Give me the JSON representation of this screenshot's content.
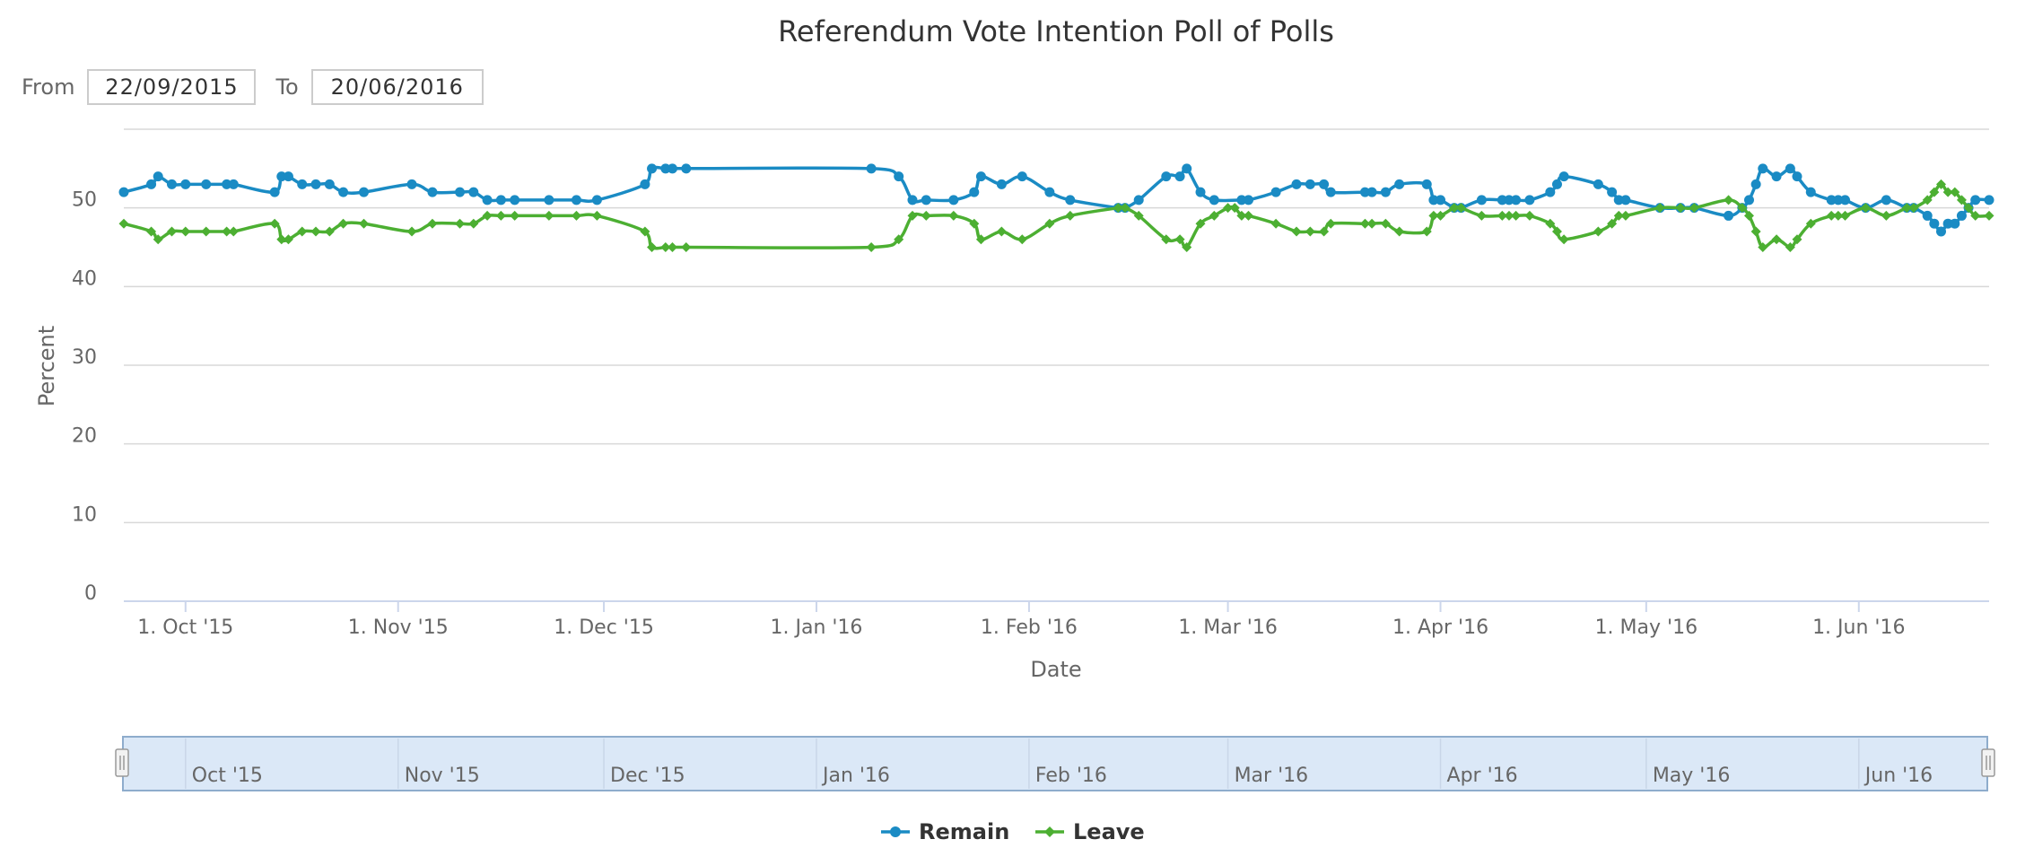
{
  "range_selector": {
    "from_label": "From",
    "from_value": "22/09/2015",
    "to_label": "To",
    "to_value": "20/06/2016"
  },
  "chart_data": {
    "type": "line",
    "title": "Referendum Vote Intention Poll of Polls",
    "xlabel": "Date",
    "ylabel": "Percent",
    "ylim": [
      0,
      60
    ],
    "yticks": [
      0,
      10,
      20,
      30,
      40,
      50
    ],
    "xlim": [
      "2015-09-22",
      "2016-06-20"
    ],
    "xticks": [
      {
        "date": "2015-10-01",
        "label": "1. Oct '15"
      },
      {
        "date": "2015-11-01",
        "label": "1. Nov '15"
      },
      {
        "date": "2015-12-01",
        "label": "1. Dec '15"
      },
      {
        "date": "2016-01-01",
        "label": "1. Jan '16"
      },
      {
        "date": "2016-02-01",
        "label": "1. Feb '16"
      },
      {
        "date": "2016-03-01",
        "label": "1. Mar '16"
      },
      {
        "date": "2016-04-01",
        "label": "1. Apr '16"
      },
      {
        "date": "2016-05-01",
        "label": "1. May '16"
      },
      {
        "date": "2016-06-01",
        "label": "1. Jun '16"
      }
    ],
    "navigator_labels": [
      {
        "date": "2015-10-01",
        "label": "Oct '15"
      },
      {
        "date": "2015-11-01",
        "label": "Nov '15"
      },
      {
        "date": "2015-12-01",
        "label": "Dec '15"
      },
      {
        "date": "2016-01-01",
        "label": "Jan '16"
      },
      {
        "date": "2016-02-01",
        "label": "Feb '16"
      },
      {
        "date": "2016-03-01",
        "label": "Mar '16"
      },
      {
        "date": "2016-04-01",
        "label": "Apr '16"
      },
      {
        "date": "2016-05-01",
        "label": "May '16"
      },
      {
        "date": "2016-06-01",
        "label": "Jun '16"
      }
    ],
    "grid": true,
    "legend_position": "bottom-center",
    "series": [
      {
        "name": "Remain",
        "color": "#1a8bc4",
        "marker": "circle",
        "points": [
          [
            "2015-09-22",
            52
          ],
          [
            "2015-09-26",
            53
          ],
          [
            "2015-09-27",
            54
          ],
          [
            "2015-09-29",
            53
          ],
          [
            "2015-10-01",
            53
          ],
          [
            "2015-10-04",
            53
          ],
          [
            "2015-10-07",
            53
          ],
          [
            "2015-10-08",
            53
          ],
          [
            "2015-10-14",
            52
          ],
          [
            "2015-10-15",
            54
          ],
          [
            "2015-10-16",
            54
          ],
          [
            "2015-10-18",
            53
          ],
          [
            "2015-10-20",
            53
          ],
          [
            "2015-10-22",
            53
          ],
          [
            "2015-10-24",
            52
          ],
          [
            "2015-10-27",
            52
          ],
          [
            "2015-11-03",
            53
          ],
          [
            "2015-11-06",
            52
          ],
          [
            "2015-11-10",
            52
          ],
          [
            "2015-11-12",
            52
          ],
          [
            "2015-11-14",
            51
          ],
          [
            "2015-11-16",
            51
          ],
          [
            "2015-11-18",
            51
          ],
          [
            "2015-11-23",
            51
          ],
          [
            "2015-11-27",
            51
          ],
          [
            "2015-11-30",
            51
          ],
          [
            "2015-12-07",
            53
          ],
          [
            "2015-12-08",
            55
          ],
          [
            "2015-12-10",
            55
          ],
          [
            "2015-12-11",
            55
          ],
          [
            "2015-12-13",
            55
          ],
          [
            "2016-01-09",
            55
          ],
          [
            "2016-01-13",
            54
          ],
          [
            "2016-01-15",
            51
          ],
          [
            "2016-01-17",
            51
          ],
          [
            "2016-01-21",
            51
          ],
          [
            "2016-01-24",
            52
          ],
          [
            "2016-01-25",
            54
          ],
          [
            "2016-01-28",
            53
          ],
          [
            "2016-01-31",
            54
          ],
          [
            "2016-02-04",
            52
          ],
          [
            "2016-02-07",
            51
          ],
          [
            "2016-02-14",
            50
          ],
          [
            "2016-02-15",
            50
          ],
          [
            "2016-02-17",
            51
          ],
          [
            "2016-02-21",
            54
          ],
          [
            "2016-02-23",
            54
          ],
          [
            "2016-02-24",
            55
          ],
          [
            "2016-02-26",
            52
          ],
          [
            "2016-02-28",
            51
          ],
          [
            "2016-03-03",
            51
          ],
          [
            "2016-03-04",
            51
          ],
          [
            "2016-03-08",
            52
          ],
          [
            "2016-03-11",
            53
          ],
          [
            "2016-03-13",
            53
          ],
          [
            "2016-03-15",
            53
          ],
          [
            "2016-03-16",
            52
          ],
          [
            "2016-03-21",
            52
          ],
          [
            "2016-03-22",
            52
          ],
          [
            "2016-03-24",
            52
          ],
          [
            "2016-03-26",
            53
          ],
          [
            "2016-03-30",
            53
          ],
          [
            "2016-03-31",
            51
          ],
          [
            "2016-04-01",
            51
          ],
          [
            "2016-04-03",
            50
          ],
          [
            "2016-04-04",
            50
          ],
          [
            "2016-04-07",
            51
          ],
          [
            "2016-04-10",
            51
          ],
          [
            "2016-04-11",
            51
          ],
          [
            "2016-04-12",
            51
          ],
          [
            "2016-04-14",
            51
          ],
          [
            "2016-04-17",
            52
          ],
          [
            "2016-04-18",
            53
          ],
          [
            "2016-04-19",
            54
          ],
          [
            "2016-04-24",
            53
          ],
          [
            "2016-04-26",
            52
          ],
          [
            "2016-04-27",
            51
          ],
          [
            "2016-04-28",
            51
          ],
          [
            "2016-05-03",
            50
          ],
          [
            "2016-05-06",
            50
          ],
          [
            "2016-05-08",
            50
          ],
          [
            "2016-05-13",
            49
          ],
          [
            "2016-05-15",
            50
          ],
          [
            "2016-05-16",
            51
          ],
          [
            "2016-05-17",
            53
          ],
          [
            "2016-05-18",
            55
          ],
          [
            "2016-05-20",
            54
          ],
          [
            "2016-05-22",
            55
          ],
          [
            "2016-05-23",
            54
          ],
          [
            "2016-05-25",
            52
          ],
          [
            "2016-05-28",
            51
          ],
          [
            "2016-05-29",
            51
          ],
          [
            "2016-05-30",
            51
          ],
          [
            "2016-06-02",
            50
          ],
          [
            "2016-06-05",
            51
          ],
          [
            "2016-06-08",
            50
          ],
          [
            "2016-06-09",
            50
          ],
          [
            "2016-06-11",
            49
          ],
          [
            "2016-06-12",
            48
          ],
          [
            "2016-06-13",
            47
          ],
          [
            "2016-06-14",
            48
          ],
          [
            "2016-06-15",
            48
          ],
          [
            "2016-06-16",
            49
          ],
          [
            "2016-06-17",
            50
          ],
          [
            "2016-06-18",
            51
          ],
          [
            "2016-06-20",
            51
          ]
        ]
      },
      {
        "name": "Leave",
        "color": "#4caf32",
        "marker": "diamond",
        "points": [
          [
            "2015-09-22",
            48
          ],
          [
            "2015-09-26",
            47
          ],
          [
            "2015-09-27",
            46
          ],
          [
            "2015-09-29",
            47
          ],
          [
            "2015-10-01",
            47
          ],
          [
            "2015-10-04",
            47
          ],
          [
            "2015-10-07",
            47
          ],
          [
            "2015-10-08",
            47
          ],
          [
            "2015-10-14",
            48
          ],
          [
            "2015-10-15",
            46
          ],
          [
            "2015-10-16",
            46
          ],
          [
            "2015-10-18",
            47
          ],
          [
            "2015-10-20",
            47
          ],
          [
            "2015-10-22",
            47
          ],
          [
            "2015-10-24",
            48
          ],
          [
            "2015-10-27",
            48
          ],
          [
            "2015-11-03",
            47
          ],
          [
            "2015-11-06",
            48
          ],
          [
            "2015-11-10",
            48
          ],
          [
            "2015-11-12",
            48
          ],
          [
            "2015-11-14",
            49
          ],
          [
            "2015-11-16",
            49
          ],
          [
            "2015-11-18",
            49
          ],
          [
            "2015-11-23",
            49
          ],
          [
            "2015-11-27",
            49
          ],
          [
            "2015-11-30",
            49
          ],
          [
            "2015-12-07",
            47
          ],
          [
            "2015-12-08",
            45
          ],
          [
            "2015-12-10",
            45
          ],
          [
            "2015-12-11",
            45
          ],
          [
            "2015-12-13",
            45
          ],
          [
            "2016-01-09",
            45
          ],
          [
            "2016-01-13",
            46
          ],
          [
            "2016-01-15",
            49
          ],
          [
            "2016-01-17",
            49
          ],
          [
            "2016-01-21",
            49
          ],
          [
            "2016-01-24",
            48
          ],
          [
            "2016-01-25",
            46
          ],
          [
            "2016-01-28",
            47
          ],
          [
            "2016-01-31",
            46
          ],
          [
            "2016-02-04",
            48
          ],
          [
            "2016-02-07",
            49
          ],
          [
            "2016-02-14",
            50
          ],
          [
            "2016-02-15",
            50
          ],
          [
            "2016-02-17",
            49
          ],
          [
            "2016-02-21",
            46
          ],
          [
            "2016-02-23",
            46
          ],
          [
            "2016-02-24",
            45
          ],
          [
            "2016-02-26",
            48
          ],
          [
            "2016-02-28",
            49
          ],
          [
            "2016-03-01",
            50
          ],
          [
            "2016-03-02",
            50
          ],
          [
            "2016-03-03",
            49
          ],
          [
            "2016-03-04",
            49
          ],
          [
            "2016-03-08",
            48
          ],
          [
            "2016-03-11",
            47
          ],
          [
            "2016-03-13",
            47
          ],
          [
            "2016-03-15",
            47
          ],
          [
            "2016-03-16",
            48
          ],
          [
            "2016-03-21",
            48
          ],
          [
            "2016-03-22",
            48
          ],
          [
            "2016-03-24",
            48
          ],
          [
            "2016-03-26",
            47
          ],
          [
            "2016-03-30",
            47
          ],
          [
            "2016-03-31",
            49
          ],
          [
            "2016-04-01",
            49
          ],
          [
            "2016-04-03",
            50
          ],
          [
            "2016-04-04",
            50
          ],
          [
            "2016-04-07",
            49
          ],
          [
            "2016-04-10",
            49
          ],
          [
            "2016-04-11",
            49
          ],
          [
            "2016-04-12",
            49
          ],
          [
            "2016-04-14",
            49
          ],
          [
            "2016-04-17",
            48
          ],
          [
            "2016-04-18",
            47
          ],
          [
            "2016-04-19",
            46
          ],
          [
            "2016-04-24",
            47
          ],
          [
            "2016-04-26",
            48
          ],
          [
            "2016-04-27",
            49
          ],
          [
            "2016-04-28",
            49
          ],
          [
            "2016-05-03",
            50
          ],
          [
            "2016-05-06",
            50
          ],
          [
            "2016-05-08",
            50
          ],
          [
            "2016-05-13",
            51
          ],
          [
            "2016-05-15",
            50
          ],
          [
            "2016-05-16",
            49
          ],
          [
            "2016-05-17",
            47
          ],
          [
            "2016-05-18",
            45
          ],
          [
            "2016-05-20",
            46
          ],
          [
            "2016-05-22",
            45
          ],
          [
            "2016-05-23",
            46
          ],
          [
            "2016-05-25",
            48
          ],
          [
            "2016-05-28",
            49
          ],
          [
            "2016-05-29",
            49
          ],
          [
            "2016-05-30",
            49
          ],
          [
            "2016-06-02",
            50
          ],
          [
            "2016-06-05",
            49
          ],
          [
            "2016-06-08",
            50
          ],
          [
            "2016-06-09",
            50
          ],
          [
            "2016-06-11",
            51
          ],
          [
            "2016-06-12",
            52
          ],
          [
            "2016-06-13",
            53
          ],
          [
            "2016-06-14",
            52
          ],
          [
            "2016-06-15",
            52
          ],
          [
            "2016-06-16",
            51
          ],
          [
            "2016-06-17",
            50
          ],
          [
            "2016-06-18",
            49
          ],
          [
            "2016-06-20",
            49
          ]
        ]
      }
    ]
  }
}
